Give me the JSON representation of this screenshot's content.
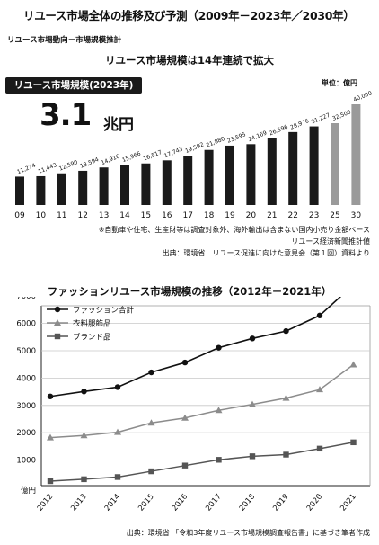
{
  "header": {
    "title": "リユース市場全体の推移及び予測（2009年－2023年／2030年）",
    "sub_label": "リユース市場動向－市場規模推計"
  },
  "chart1_panel": {
    "title": "リユース市場規模は14年連続で拡大",
    "badge": "リユース市場規模(2023年)",
    "big_number": "3.1",
    "big_unit": "兆円",
    "unit": "単位：億円",
    "notes": [
      "※自動車や住宅、生産財等は調査対象外、海外輸出は含まない国内小売り金額ベース",
      "リユース経済新聞推計値",
      "出典：環境省　リユース促進に向けた意見会（第１回）資料より"
    ]
  },
  "chart2_panel": {
    "title": "ファッションリユース市場規模の推移（2012年－2021年）",
    "source": "出典：環境省 「令和3年度リユース市場規模調査報告書」に基づき筆者作成"
  },
  "colors": {
    "bar_actual": "#1a1a1a",
    "bar_forecast": "#9a9a9a",
    "line_total": "#111111",
    "line_clothing": "#8c8c8c",
    "line_brand": "#555555"
  },
  "chart_data": [
    {
      "type": "bar",
      "title": "リユース市場規模は14年連続で拡大",
      "categories": [
        "09",
        "10",
        "11",
        "12",
        "13",
        "14",
        "15",
        "16",
        "17",
        "18",
        "19",
        "20",
        "21",
        "22",
        "23",
        "25",
        "30"
      ],
      "values": [
        11274,
        11443,
        12590,
        13594,
        14916,
        15966,
        16517,
        17743,
        19592,
        21880,
        23595,
        24169,
        26596,
        28976,
        31227,
        32500,
        40000
      ],
      "value_labels": [
        "11,274",
        "11,443",
        "12,590",
        "13,594",
        "14,916",
        "15,966",
        "16,517",
        "17,743",
        "19,592",
        "21,880",
        "23,595",
        "24,169",
        "26,596",
        "28,976",
        "31,227",
        "32,500",
        "40,000"
      ],
      "forecast": [
        false,
        false,
        false,
        false,
        false,
        false,
        false,
        false,
        false,
        false,
        false,
        false,
        false,
        false,
        false,
        true,
        true
      ],
      "unit": "単位：億円",
      "ylim": [
        0,
        40000
      ]
    },
    {
      "type": "line",
      "title": "ファッションリユース市場規模の推移（2012年－2021年）",
      "x": [
        "2012",
        "2013",
        "2014",
        "2015",
        "2016",
        "2017",
        "2018",
        "2019",
        "2020",
        "2021"
      ],
      "series": [
        {
          "name": "ファッション合計",
          "values": [
            3330,
            3510,
            3670,
            4210,
            4570,
            5110,
            5450,
            5720,
            6290,
            7410
          ]
        },
        {
          "name": "衣料服飾品",
          "values": [
            1820,
            1900,
            2020,
            2360,
            2540,
            2820,
            3040,
            3270,
            3580,
            4490
          ]
        },
        {
          "name": "ブランド品",
          "values": [
            230,
            300,
            380,
            590,
            800,
            1010,
            1140,
            1200,
            1420,
            1650
          ]
        }
      ],
      "yticks": [
        0,
        1000,
        2000,
        3000,
        4000,
        5000,
        6000,
        7000
      ],
      "ytick_labels": [
        "億円",
        "1000",
        "2000",
        "3000",
        "4000",
        "5000",
        "6000",
        "7000"
      ],
      "ylim": [
        0,
        7600
      ],
      "legend": "top-left",
      "grid": "horizontal"
    }
  ]
}
